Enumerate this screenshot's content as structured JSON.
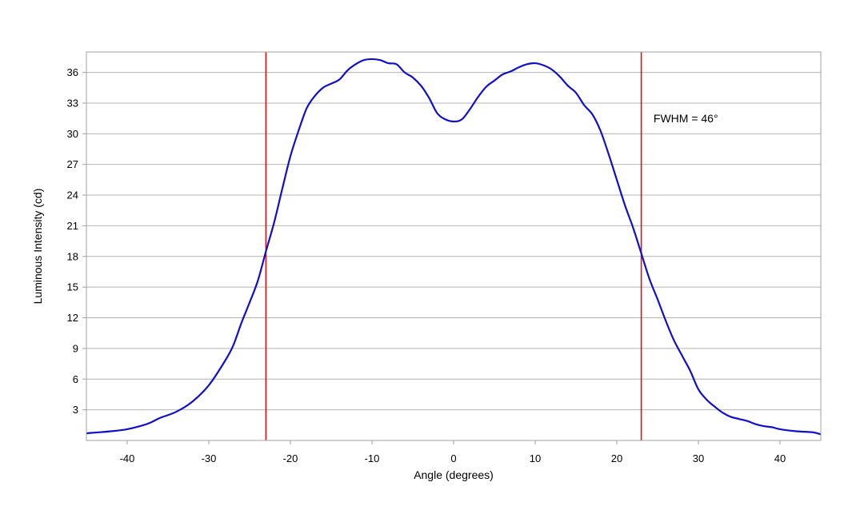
{
  "chart_data": {
    "type": "line",
    "title": "",
    "xlabel": "Angle (degrees)",
    "ylabel": "Luminous Intensity (cd)",
    "xlim": [
      -45,
      45
    ],
    "ylim": [
      0,
      38
    ],
    "x_ticks": [
      -40,
      -30,
      -20,
      -10,
      0,
      10,
      20,
      30,
      40
    ],
    "y_ticks": [
      3,
      6,
      9,
      12,
      15,
      18,
      21,
      24,
      27,
      30,
      33,
      36
    ],
    "grid": "horizontal",
    "series": [
      {
        "color": "#1010cc",
        "points": [
          [
            -45,
            0.7
          ],
          [
            -42,
            0.9
          ],
          [
            -40,
            1.1
          ],
          [
            -38,
            1.5
          ],
          [
            -37,
            1.8
          ],
          [
            -36,
            2.2
          ],
          [
            -34,
            2.8
          ],
          [
            -32,
            3.8
          ],
          [
            -30,
            5.4
          ],
          [
            -28,
            7.8
          ],
          [
            -27,
            9.3
          ],
          [
            -26,
            11.5
          ],
          [
            -25,
            13.5
          ],
          [
            -24,
            15.6
          ],
          [
            -23,
            18.5
          ],
          [
            -22,
            21.3
          ],
          [
            -21,
            24.6
          ],
          [
            -20,
            27.8
          ],
          [
            -19,
            30.3
          ],
          [
            -18,
            32.5
          ],
          [
            -17,
            33.7
          ],
          [
            -16,
            34.5
          ],
          [
            -15,
            34.9
          ],
          [
            -14,
            35.3
          ],
          [
            -13,
            36.2
          ],
          [
            -12,
            36.8
          ],
          [
            -11,
            37.2
          ],
          [
            -10,
            37.3
          ],
          [
            -9,
            37.2
          ],
          [
            -8,
            36.9
          ],
          [
            -7,
            36.8
          ],
          [
            -6,
            36.0
          ],
          [
            -5,
            35.5
          ],
          [
            -4,
            34.7
          ],
          [
            -3,
            33.5
          ],
          [
            -2,
            32.0
          ],
          [
            -1,
            31.4
          ],
          [
            0,
            31.2
          ],
          [
            1,
            31.4
          ],
          [
            2,
            32.4
          ],
          [
            3,
            33.6
          ],
          [
            4,
            34.6
          ],
          [
            5,
            35.2
          ],
          [
            6,
            35.8
          ],
          [
            7,
            36.1
          ],
          [
            8,
            36.5
          ],
          [
            9,
            36.8
          ],
          [
            10,
            36.9
          ],
          [
            11,
            36.7
          ],
          [
            12,
            36.3
          ],
          [
            13,
            35.6
          ],
          [
            14,
            34.7
          ],
          [
            15,
            34.0
          ],
          [
            16,
            32.8
          ],
          [
            17,
            31.9
          ],
          [
            18,
            30.3
          ],
          [
            19,
            28.0
          ],
          [
            20,
            25.5
          ],
          [
            21,
            23.0
          ],
          [
            22,
            20.8
          ],
          [
            23,
            18.3
          ],
          [
            24,
            15.8
          ],
          [
            25,
            13.8
          ],
          [
            26,
            11.7
          ],
          [
            27,
            9.8
          ],
          [
            28,
            8.3
          ],
          [
            29,
            6.8
          ],
          [
            30,
            5.0
          ],
          [
            31,
            4.0
          ],
          [
            32,
            3.3
          ],
          [
            33,
            2.7
          ],
          [
            34,
            2.3
          ],
          [
            35,
            2.1
          ],
          [
            36,
            1.9
          ],
          [
            37,
            1.6
          ],
          [
            38,
            1.4
          ],
          [
            39,
            1.3
          ],
          [
            40,
            1.1
          ],
          [
            42,
            0.9
          ],
          [
            44,
            0.8
          ],
          [
            45,
            0.6
          ]
        ]
      }
    ],
    "fwhm_lines": {
      "x": [
        -23,
        23
      ],
      "color": "#dd1111"
    },
    "annotations": [
      {
        "text": "FWHM = 46°",
        "x": 24.5,
        "y": 31.5
      }
    ]
  }
}
